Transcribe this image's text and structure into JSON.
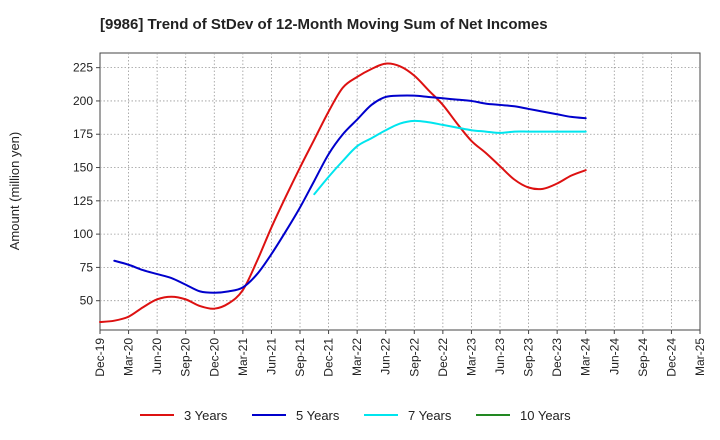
{
  "chart_data": {
    "type": "line",
    "title": "[9986]  Trend of StDev of 12-Month Moving Sum of Net Incomes",
    "xlabel": "",
    "ylabel": "Amount (million yen)",
    "ylim": [
      28,
      236
    ],
    "yticks": [
      50,
      75,
      100,
      125,
      150,
      175,
      200,
      225
    ],
    "categories": [
      "Dec-19",
      "Mar-20",
      "Jun-20",
      "Sep-20",
      "Dec-20",
      "Mar-21",
      "Jun-21",
      "Sep-21",
      "Dec-21",
      "Mar-22",
      "Jun-22",
      "Sep-22",
      "Dec-22",
      "Mar-23",
      "Jun-23",
      "Sep-23",
      "Dec-23",
      "Mar-24",
      "Jun-24",
      "Sep-24",
      "Dec-24",
      "Mar-25"
    ],
    "grid": true,
    "legend_position": "bottom",
    "series": [
      {
        "name": "3 Years",
        "color": "#dd1111",
        "points": [
          [
            0,
            34
          ],
          [
            0.5,
            35
          ],
          [
            1,
            38
          ],
          [
            1.5,
            45
          ],
          [
            2,
            51
          ],
          [
            2.5,
            53
          ],
          [
            3,
            51
          ],
          [
            3.5,
            46
          ],
          [
            4,
            44
          ],
          [
            4.5,
            48
          ],
          [
            5,
            58
          ],
          [
            5.5,
            80
          ],
          [
            6,
            105
          ],
          [
            6.5,
            128
          ],
          [
            7,
            150
          ],
          [
            7.5,
            171
          ],
          [
            8,
            192
          ],
          [
            8.5,
            210
          ],
          [
            9,
            218
          ],
          [
            9.5,
            224
          ],
          [
            10,
            228
          ],
          [
            10.5,
            226
          ],
          [
            11,
            219
          ],
          [
            11.5,
            208
          ],
          [
            12,
            197
          ],
          [
            12.5,
            183
          ],
          [
            13,
            170
          ],
          [
            13.5,
            161
          ],
          [
            14,
            151
          ],
          [
            14.5,
            141
          ],
          [
            15,
            135
          ],
          [
            15.5,
            134
          ],
          [
            16,
            138
          ],
          [
            16.5,
            144
          ],
          [
            17,
            148
          ]
        ]
      },
      {
        "name": "5 Years",
        "color": "#0000cc",
        "points": [
          [
            0.5,
            80
          ],
          [
            1,
            77
          ],
          [
            1.5,
            73
          ],
          [
            2,
            70
          ],
          [
            2.5,
            67
          ],
          [
            3,
            62
          ],
          [
            3.5,
            57
          ],
          [
            4,
            56
          ],
          [
            4.5,
            57
          ],
          [
            5,
            60
          ],
          [
            5.5,
            70
          ],
          [
            6,
            85
          ],
          [
            6.5,
            102
          ],
          [
            7,
            120
          ],
          [
            7.5,
            140
          ],
          [
            8,
            160
          ],
          [
            8.5,
            175
          ],
          [
            9,
            186
          ],
          [
            9.5,
            197
          ],
          [
            10,
            203
          ],
          [
            10.5,
            204
          ],
          [
            11,
            204
          ],
          [
            11.5,
            203
          ],
          [
            12,
            202
          ],
          [
            12.5,
            201
          ],
          [
            13,
            200
          ],
          [
            13.5,
            198
          ],
          [
            14,
            197
          ],
          [
            14.5,
            196
          ],
          [
            15,
            194
          ],
          [
            15.5,
            192
          ],
          [
            16,
            190
          ],
          [
            16.5,
            188
          ],
          [
            17,
            187
          ]
        ]
      },
      {
        "name": "7 Years",
        "color": "#00e5ee",
        "points": [
          [
            7.5,
            130
          ],
          [
            8,
            143
          ],
          [
            8.5,
            155
          ],
          [
            9,
            166
          ],
          [
            9.5,
            172
          ],
          [
            10,
            178
          ],
          [
            10.5,
            183
          ],
          [
            11,
            185
          ],
          [
            11.5,
            184
          ],
          [
            12,
            182
          ],
          [
            12.5,
            180
          ],
          [
            13,
            178
          ],
          [
            13.5,
            177
          ],
          [
            14,
            176
          ],
          [
            14.5,
            177
          ],
          [
            15,
            177
          ],
          [
            15.5,
            177
          ],
          [
            16,
            177
          ],
          [
            16.5,
            177
          ],
          [
            17,
            177
          ]
        ]
      },
      {
        "name": "10 Years",
        "color": "#228822",
        "points": []
      }
    ]
  }
}
